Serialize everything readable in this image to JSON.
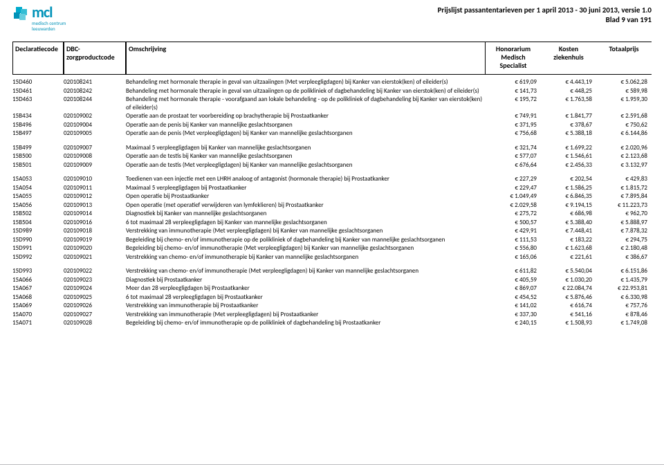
{
  "header": {
    "brand": "mcl",
    "sub1": "medisch centrum",
    "sub2": "leeuwarden",
    "title_line1": "Prijslijst passantentarieven per 1 april 2013 - 30 juni 2013, versie 1.0",
    "title_line2": "Blad 9 van 191"
  },
  "columns": {
    "c1": "Declaratiecode",
    "c2a": "DBC-",
    "c2b": "zorgproductcode",
    "c3": "Omschrijving",
    "c4a": "Honorarium",
    "c4b": "Medisch",
    "c4c": "Specialist",
    "c5a": "Kosten",
    "c5b": "ziekenhuis",
    "c6": "Totaalprijs"
  },
  "rows": [
    {
      "d": "15D460",
      "z": "020108241",
      "o": "Behandeling met hormonale therapie in geval van uitzaaiingen (Met verpleegligdagen) bij Kanker van eierstok(ken) of eileider(s)",
      "h": "€ 619,09",
      "k": "€ 4.443,19",
      "t": "€ 5.062,28"
    },
    {
      "d": "15D461",
      "z": "020108242",
      "o": "Behandeling met hormonale therapie in geval van uitzaaiingen op de polikliniek of dagbehandeling bij Kanker van eierstok(ken) of eileider(s)",
      "h": "€ 141,73",
      "k": "€ 448,25",
      "t": "€ 589,98"
    },
    {
      "d": "15D463",
      "z": "020108244",
      "o": "Behandeling met hormonale therapie - voorafgaand aan lokale behandeling - op de polikliniek of dagbehandeling bij Kanker van eierstok(ken) of eileider(s)",
      "h": "€ 195,72",
      "k": "€ 1.763,58",
      "t": "€ 1.959,30"
    },
    {
      "d": "15B434",
      "z": "020109002",
      "o": "Operatie aan de prostaat ter voorbereiding op brachytherapie bij Prostaatkanker",
      "h": "€ 749,91",
      "k": "€ 1.841,77",
      "t": "€ 2.591,68"
    },
    {
      "d": "15B496",
      "z": "020109004",
      "o": "Operatie aan de penis bij Kanker van mannelijke geslachtsorganen",
      "h": "€ 371,95",
      "k": "€ 378,67",
      "t": "€ 750,62"
    },
    {
      "d": "15B497",
      "z": "020109005",
      "o": "Operatie aan de penis (Met verpleegligdagen) bij Kanker van mannelijke geslachtsorganen",
      "h": "€ 756,68",
      "k": "€ 5.388,18",
      "t": "€ 6.144,86"
    },
    {
      "gap": true
    },
    {
      "d": "15B499",
      "z": "020109007",
      "o": "Maximaal 5 verpleegligdagen bij Kanker van mannelijke geslachtsorganen",
      "h": "€ 321,74",
      "k": "€ 1.699,22",
      "t": "€ 2.020,96"
    },
    {
      "d": "15B500",
      "z": "020109008",
      "o": "Operatie aan de testis bij Kanker van mannelijke geslachtsorganen",
      "h": "€ 577,07",
      "k": "€ 1.546,61",
      "t": "€ 2.123,68"
    },
    {
      "d": "15B501",
      "z": "020109009",
      "o": "Operatie aan de testis (Met verpleegligdagen) bij Kanker van mannelijke geslachtsorganen",
      "h": "€ 676,64",
      "k": "€ 2.456,33",
      "t": "€ 3.132,97"
    },
    {
      "gap": true
    },
    {
      "d": "15A053",
      "z": "020109010",
      "o": "Toedienen van een injectie met een LHRH analoog of antagonist (hormonale therapie) bij Prostaatkanker",
      "h": "€ 227,29",
      "k": "€ 202,54",
      "t": "€ 429,83"
    },
    {
      "d": "15A054",
      "z": "020109011",
      "o": "Maximaal 5 verpleegligdagen bij Prostaatkanker",
      "h": "€ 229,47",
      "k": "€ 1.586,25",
      "t": "€ 1.815,72"
    },
    {
      "d": "15A055",
      "z": "020109012",
      "o": "Open operatie bij Prostaatkanker",
      "h": "€ 1.049,49",
      "k": "€ 6.846,35",
      "t": "€ 7.895,84"
    },
    {
      "d": "15A056",
      "z": "020109013",
      "o": "Open operatie (met operatief verwijderen van lymfeklieren) bij Prostaatkanker",
      "h": "€ 2.029,58",
      "k": "€ 9.194,15",
      "t": "€ 11.223,73"
    },
    {
      "d": "15B502",
      "z": "020109014",
      "o": "Diagnostiek bij Kanker van mannelijke geslachtsorganen",
      "h": "€ 275,72",
      "k": "€ 686,98",
      "t": "€ 962,70"
    },
    {
      "d": "15B504",
      "z": "020109016",
      "o": "6 tot maximaal 28 verpleegligdagen bij Kanker van mannelijke geslachtsorganen",
      "h": "€ 500,57",
      "k": "€ 5.388,40",
      "t": "€ 5.888,97"
    },
    {
      "d": "15D989",
      "z": "020109018",
      "o": "Verstrekking van immunotherapie (Met verpleegligdagen) bij Kanker van mannelijke geslachtsorganen",
      "h": "€ 429,91",
      "k": "€ 7.448,41",
      "t": "€ 7.878,32"
    },
    {
      "d": "15D990",
      "z": "020109019",
      "o": "Begeleiding bij chemo- en/of immunotherapie op de polikliniek of dagbehandeling bij Kanker van mannelijke geslachtsorganen",
      "h": "€ 111,53",
      "k": "€ 183,22",
      "t": "€ 294,75"
    },
    {
      "d": "15D991",
      "z": "020109020",
      "o": "Begeleiding bij chemo- en/of immunotherapie (Met verpleegligdagen) bij Kanker van mannelijke geslachtsorganen",
      "h": "€ 556,80",
      "k": "€ 1.623,68",
      "t": "€ 2.180,48"
    },
    {
      "d": "15D992",
      "z": "020109021",
      "o": "Verstrekking van chemo- en/of immunotherapie bij Kanker van mannelijke geslachtsorganen",
      "h": "€ 165,06",
      "k": "€ 221,61",
      "t": "€ 386,67"
    },
    {
      "gap": true
    },
    {
      "d": "15D993",
      "z": "020109022",
      "o": "Verstrekking van chemo- en/of immunotherapie (Met verpleegligdagen) bij Kanker van mannelijke geslachtsorganen",
      "h": "€ 611,82",
      "k": "€ 5.540,04",
      "t": "€ 6.151,86"
    },
    {
      "d": "15A066",
      "z": "020109023",
      "o": "Diagnostiek bij Prostaatkanker",
      "h": "€ 405,59",
      "k": "€ 1.030,20",
      "t": "€ 1.435,79"
    },
    {
      "d": "15A067",
      "z": "020109024",
      "o": "Meer dan 28 verpleegligdagen bij Prostaatkanker",
      "h": "€ 869,07",
      "k": "€ 22.084,74",
      "t": "€ 22.953,81"
    },
    {
      "d": "15A068",
      "z": "020109025",
      "o": "6 tot maximaal 28 verpleegligdagen bij Prostaatkanker",
      "h": "€ 454,52",
      "k": "€ 5.876,46",
      "t": "€ 6.330,98"
    },
    {
      "d": "15A069",
      "z": "020109026",
      "o": "Verstrekking van immunotherapie bij Prostaatkanker",
      "h": "€ 141,02",
      "k": "€ 616,74",
      "t": "€ 757,76"
    },
    {
      "d": "15A070",
      "z": "020109027",
      "o": "Verstrekking van immunotherapie (Met verpleegligdagen) bij Prostaatkanker",
      "h": "€ 337,30",
      "k": "€ 541,16",
      "t": "€ 878,46"
    },
    {
      "d": "15A071",
      "z": "020109028",
      "o": "Begeleiding bij chemo- en/of immunotherapie op de polikliniek of dagbehandeling bij Prostaatkanker",
      "h": "€ 240,15",
      "k": "€ 1.508,93",
      "t": "€ 1.749,08"
    }
  ]
}
